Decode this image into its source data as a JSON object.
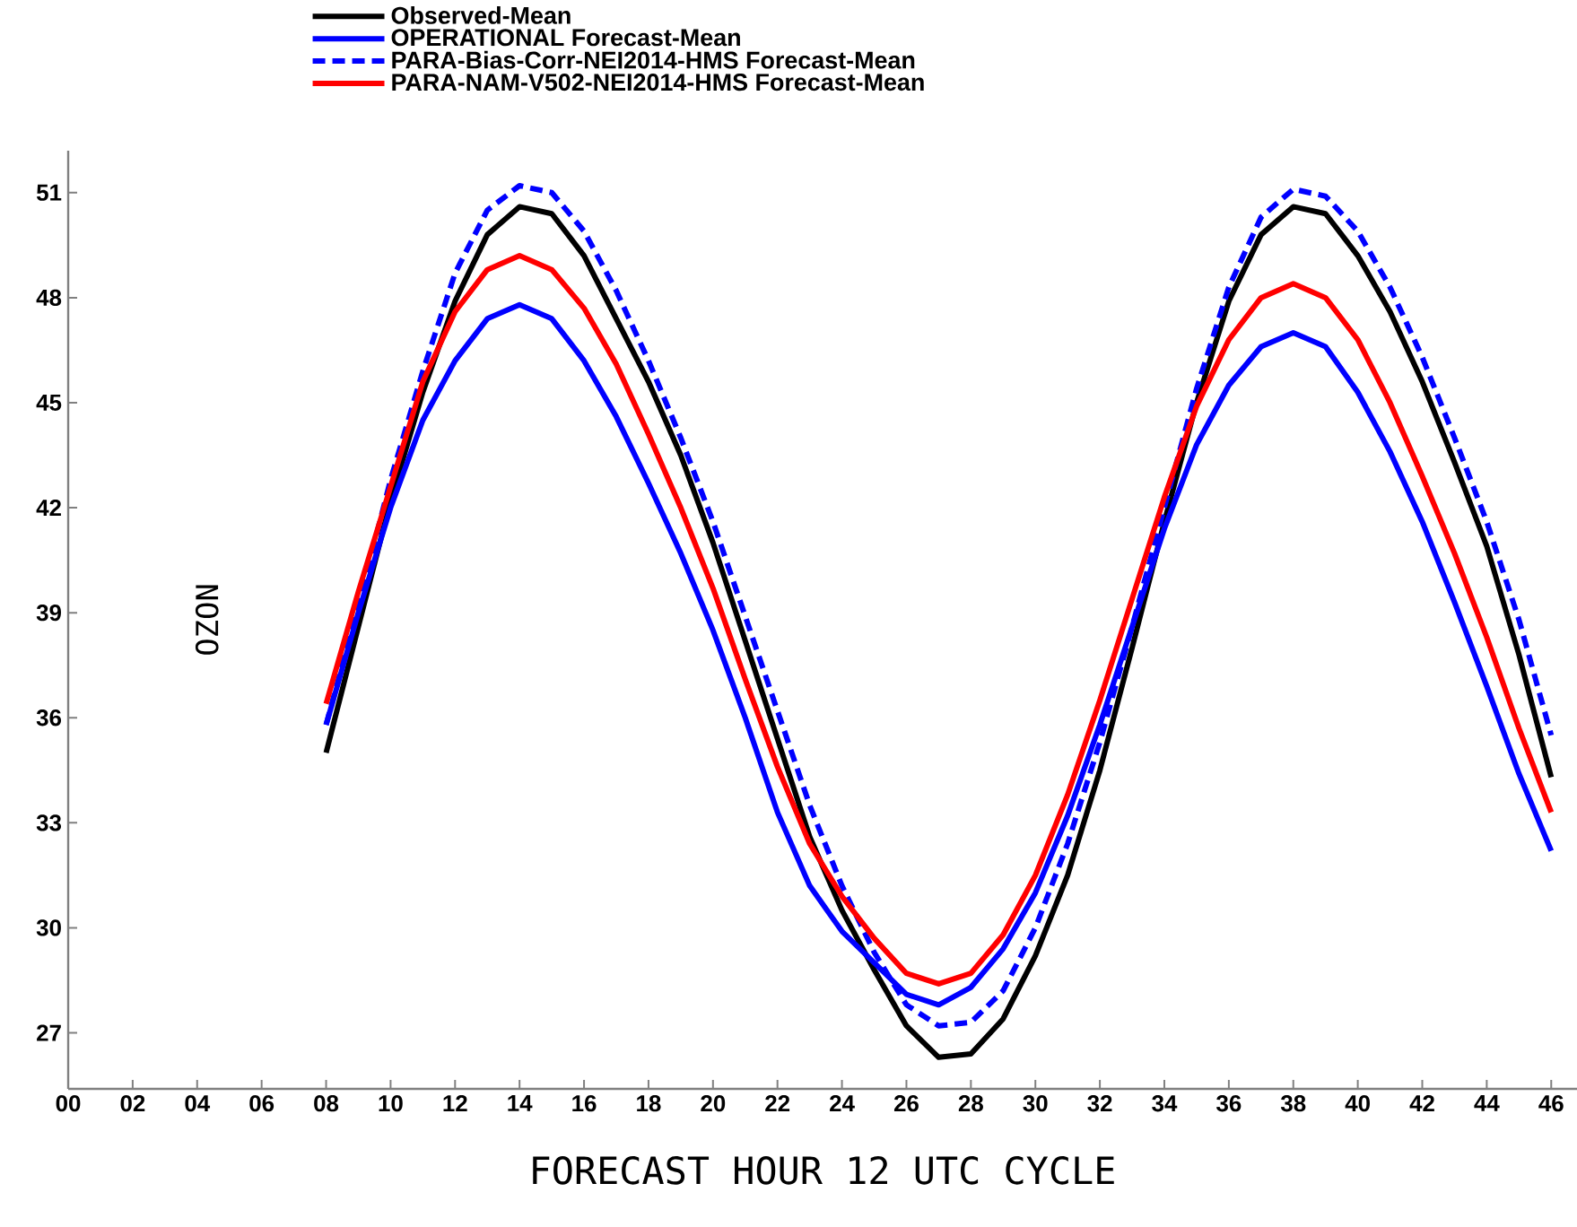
{
  "chart_data": {
    "type": "line",
    "xlabel": "FORECAST HOUR  12 UTC CYCLE",
    "ylabel": "OZON",
    "x": [
      8,
      9,
      10,
      11,
      12,
      13,
      14,
      15,
      16,
      17,
      18,
      19,
      20,
      21,
      22,
      23,
      24,
      25,
      26,
      27,
      28,
      29,
      30,
      31,
      32,
      33,
      34,
      35,
      36,
      37,
      38,
      39,
      40,
      41,
      42,
      43,
      44,
      45,
      46
    ],
    "series": [
      {
        "name": "Observed-Mean",
        "color": "#000000",
        "line_style": "solid",
        "values": [
          35.0,
          38.6,
          42.2,
          45.3,
          47.9,
          49.8,
          50.6,
          50.4,
          49.2,
          47.4,
          45.6,
          43.5,
          41.0,
          38.2,
          35.4,
          32.6,
          30.5,
          28.8,
          27.2,
          26.3,
          26.4,
          27.4,
          29.2,
          31.5,
          34.5,
          38.0,
          41.6,
          45.0,
          47.9,
          49.8,
          50.6,
          50.4,
          49.2,
          47.6,
          45.6,
          43.3,
          40.9,
          37.8,
          34.3
        ]
      },
      {
        "name": "OPERATIONAL Forecast-Mean",
        "color": "#0000ff",
        "line_style": "solid",
        "values": [
          35.8,
          39.0,
          42.0,
          44.5,
          46.2,
          47.4,
          47.8,
          47.4,
          46.2,
          44.6,
          42.7,
          40.7,
          38.5,
          36.0,
          33.3,
          31.2,
          29.9,
          29.0,
          28.1,
          27.8,
          28.3,
          29.4,
          31.0,
          33.2,
          35.8,
          38.6,
          41.4,
          43.8,
          45.5,
          46.6,
          47.0,
          46.6,
          45.3,
          43.6,
          41.6,
          39.3,
          36.9,
          34.4,
          32.2
        ]
      },
      {
        "name": "PARA-Bias-Corr-NEI2014-HMS Forecast-Mean",
        "color": "#0000ff",
        "line_style": "dashed",
        "values": [
          35.8,
          39.2,
          42.8,
          45.9,
          48.7,
          50.5,
          51.2,
          51.0,
          49.9,
          48.2,
          46.2,
          44.0,
          41.6,
          38.9,
          36.2,
          33.5,
          31.2,
          29.3,
          27.8,
          27.2,
          27.3,
          28.2,
          30.0,
          32.4,
          35.3,
          38.6,
          42.0,
          45.4,
          48.3,
          50.3,
          51.1,
          50.9,
          49.9,
          48.3,
          46.3,
          44.0,
          41.6,
          38.8,
          35.5
        ]
      },
      {
        "name": "PARA-NAM-V502-NEI2014-HMS Forecast-Mean",
        "color": "#ff0000",
        "line_style": "solid",
        "values": [
          36.4,
          39.6,
          42.6,
          45.6,
          47.6,
          48.8,
          49.2,
          48.8,
          47.7,
          46.1,
          44.1,
          42.0,
          39.7,
          37.1,
          34.6,
          32.4,
          30.9,
          29.7,
          28.7,
          28.4,
          28.7,
          29.8,
          31.5,
          33.8,
          36.5,
          39.4,
          42.3,
          44.9,
          46.8,
          48.0,
          48.4,
          48.0,
          46.8,
          45.0,
          42.9,
          40.7,
          38.3,
          35.7,
          33.3
        ]
      }
    ],
    "xlim": [
      0,
      46.8
    ],
    "ylim": [
      25.4,
      52.2
    ],
    "xticks": [
      {
        "value": 0,
        "label": "00"
      },
      {
        "value": 2,
        "label": "02"
      },
      {
        "value": 4,
        "label": "04"
      },
      {
        "value": 6,
        "label": "06"
      },
      {
        "value": 8,
        "label": "08"
      },
      10,
      12,
      14,
      16,
      18,
      20,
      22,
      24,
      26,
      28,
      30,
      32,
      34,
      36,
      38,
      40,
      42,
      44,
      46
    ],
    "yticks": [
      27,
      30,
      33,
      36,
      39,
      42,
      45,
      48,
      51
    ],
    "grid": false,
    "legend": "top left",
    "marker": "none"
  }
}
